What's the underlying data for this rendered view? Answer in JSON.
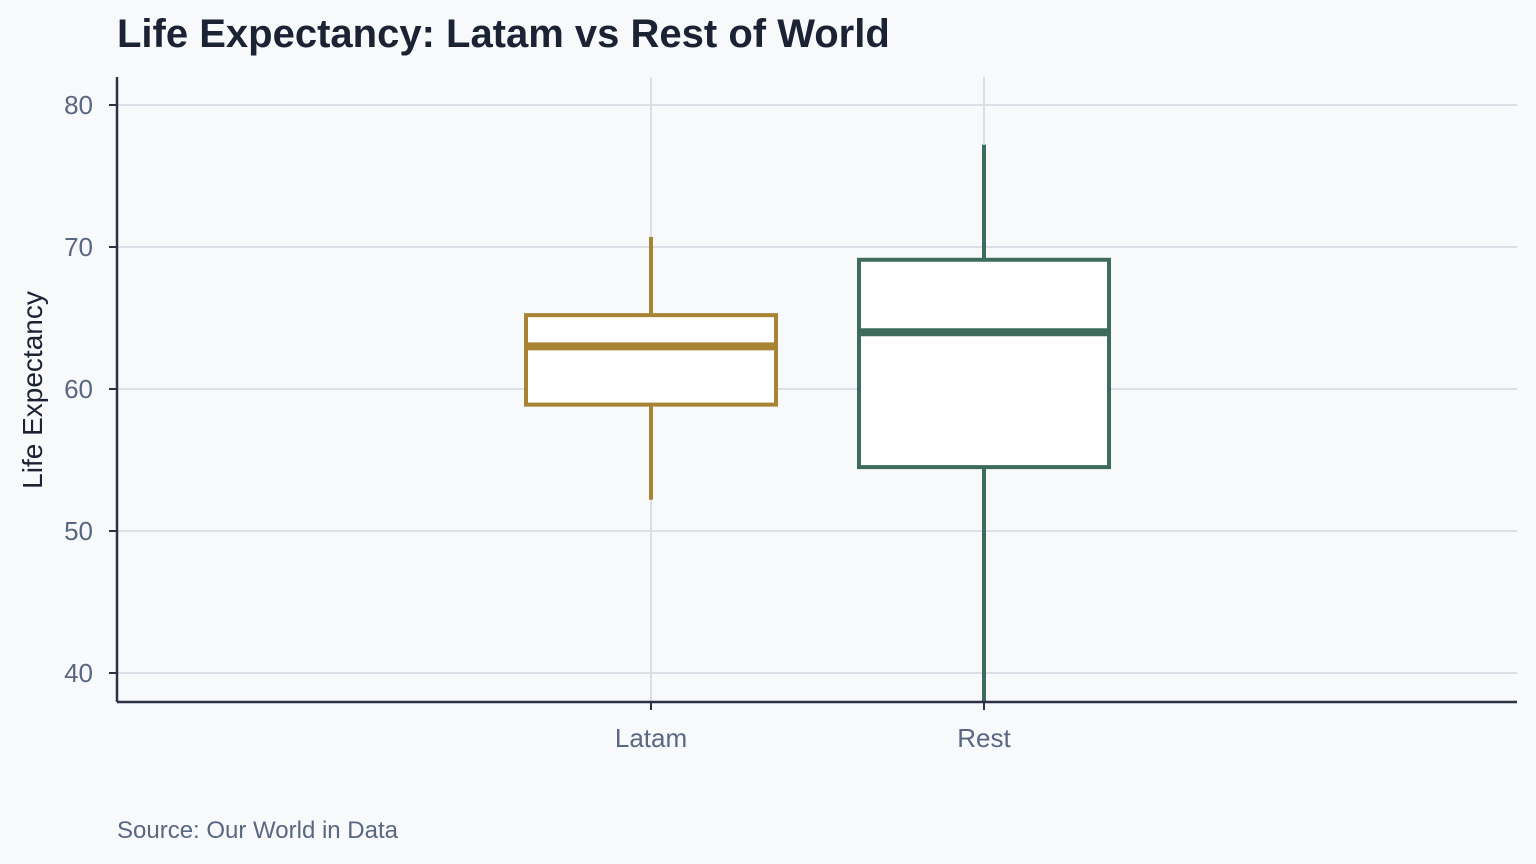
{
  "chart_data": {
    "type": "box",
    "title": "Life Expectancy: Latam vs Rest of World",
    "source": "Source: Our World in Data",
    "ylabel": "Life Expectancy",
    "xlabel": "",
    "ylim": [
      38,
      82
    ],
    "yticks": [
      40,
      50,
      60,
      70,
      80
    ],
    "grid": true,
    "categories": [
      "Latam",
      "Rest"
    ],
    "boxes": [
      {
        "category": "Latam",
        "color": "#a68434",
        "whisker_low": 52.2,
        "q1": 58.9,
        "median": 63.0,
        "q3": 65.2,
        "whisker_high": 70.7
      },
      {
        "category": "Rest",
        "color": "#3d6b5c",
        "whisker_low": 38.0,
        "q1": 54.5,
        "median": 64.0,
        "q3": 69.1,
        "whisker_high": 77.2
      }
    ]
  }
}
